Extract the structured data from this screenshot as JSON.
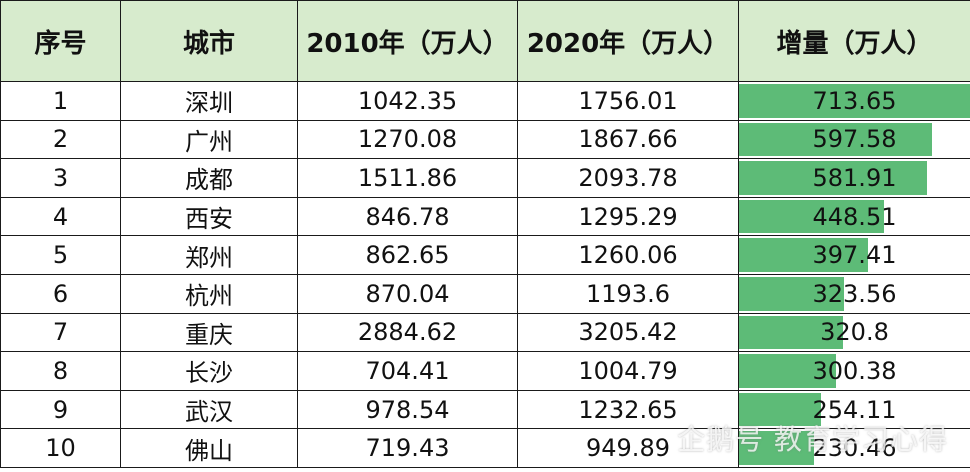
{
  "colors": {
    "header_bg": "#d7ebcd",
    "bar": "#5dbb77",
    "border": "#1a1a1a"
  },
  "header": {
    "index": "序号",
    "city": "城市",
    "pop2010": "2010年（万人）",
    "pop2020": "2020年（万人）",
    "increase": "增量（万人）"
  },
  "rows": [
    {
      "index": "1",
      "city": "深圳",
      "pop2010": "1042.35",
      "pop2020": "1756.01",
      "increase": "713.65"
    },
    {
      "index": "2",
      "city": "广州",
      "pop2010": "1270.08",
      "pop2020": "1867.66",
      "increase": "597.58"
    },
    {
      "index": "3",
      "city": "成都",
      "pop2010": "1511.86",
      "pop2020": "2093.78",
      "increase": "581.91"
    },
    {
      "index": "4",
      "city": "西安",
      "pop2010": "846.78",
      "pop2020": "1295.29",
      "increase": "448.51"
    },
    {
      "index": "5",
      "city": "郑州",
      "pop2010": "862.65",
      "pop2020": "1260.06",
      "increase": "397.41"
    },
    {
      "index": "6",
      "city": "杭州",
      "pop2010": "870.04",
      "pop2020": "1193.6",
      "increase": "323.56"
    },
    {
      "index": "7",
      "city": "重庆",
      "pop2010": "2884.62",
      "pop2020": "3205.42",
      "increase": "320.8"
    },
    {
      "index": "8",
      "city": "长沙",
      "pop2010": "704.41",
      "pop2020": "1004.79",
      "increase": "300.38"
    },
    {
      "index": "9",
      "city": "武汉",
      "pop2010": "978.54",
      "pop2020": "1232.65",
      "increase": "254.11"
    },
    {
      "index": "10",
      "city": "佛山",
      "pop2010": "719.43",
      "pop2020": "949.89",
      "increase": "230.46"
    }
  ],
  "watermark": "企鹅号 教育学习心得"
}
